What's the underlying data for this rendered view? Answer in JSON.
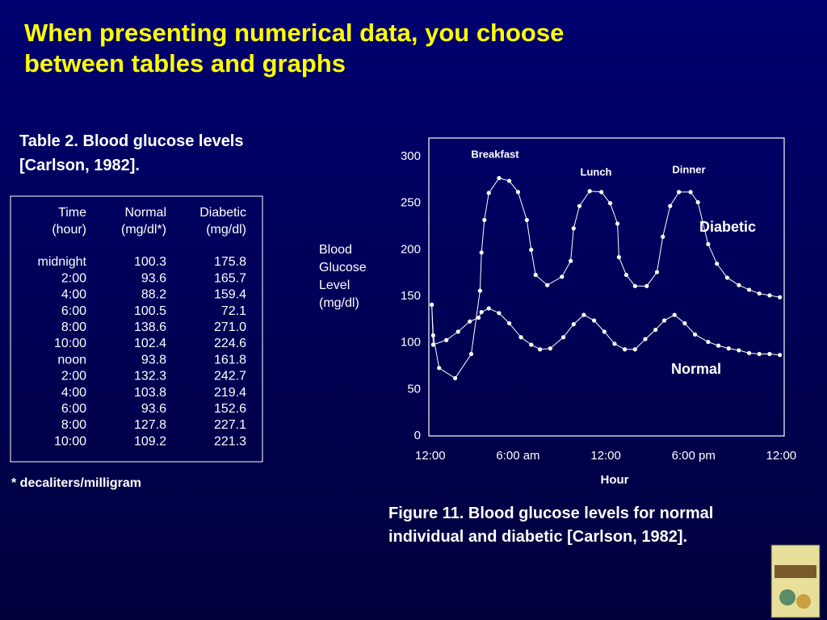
{
  "title": "When presenting numerical data, you choose between tables and graphs",
  "table_caption": "Table 2. Blood glucose levels [Carlson, 1982].",
  "table": {
    "header": [
      [
        "Time",
        "(hour)"
      ],
      [
        "Normal",
        "(mg/dl*)"
      ],
      [
        "Diabetic",
        "(mg/dl)"
      ]
    ],
    "rows": [
      [
        "midnight",
        "100.3",
        "175.8"
      ],
      [
        "2:00",
        "93.6",
        "165.7"
      ],
      [
        "4:00",
        "88.2",
        "159.4"
      ],
      [
        "6:00",
        "100.5",
        "72.1"
      ],
      [
        "8:00",
        "138.6",
        "271.0"
      ],
      [
        "10:00",
        "102.4",
        "224.6"
      ],
      [
        "noon",
        "93.8",
        "161.8"
      ],
      [
        "2:00",
        "132.3",
        "242.7"
      ],
      [
        "4:00",
        "103.8",
        "219.4"
      ],
      [
        "6:00",
        "93.6",
        "152.6"
      ],
      [
        "8:00",
        "127.8",
        "227.1"
      ],
      [
        "10:00",
        "109.2",
        "221.3"
      ]
    ]
  },
  "footnote": "* decaliters/milligram",
  "figure_caption": "Figure 11. Blood glucose levels for normal individual and diabetic [Carlson, 1982].",
  "chart_data": {
    "type": "line",
    "x_label": "Hour",
    "y_label": "Blood Glucose Level (mg/dl)",
    "xlim": [
      -0.1,
      24.2
    ],
    "ylim": [
      0,
      320
    ],
    "xticks": [
      {
        "value": 0,
        "label": "12:00"
      },
      {
        "value": 6,
        "label": "6:00 am"
      },
      {
        "value": 12,
        "label": "12:00"
      },
      {
        "value": 18,
        "label": "6:00 pm"
      },
      {
        "value": 24,
        "label": "12:00"
      }
    ],
    "yticks": [
      0,
      50,
      100,
      150,
      200,
      250,
      300
    ],
    "annotations": [
      "Breakfast",
      "Lunch",
      "Dinner"
    ],
    "series": [
      {
        "name": "Diabetic",
        "color": "#ffffff",
        "x": [
          0.1,
          0.2,
          0.6,
          1.7,
          2.8,
          3.4,
          3.5,
          3.7,
          4.0,
          4.7,
          5.4,
          6.0,
          6.6,
          6.9,
          7.2,
          8.0,
          9.0,
          9.6,
          9.8,
          10.2,
          10.9,
          11.7,
          12.3,
          12.8,
          12.9,
          13.4,
          14.0,
          14.8,
          15.5,
          15.9,
          16.4,
          17.0,
          17.8,
          18.3,
          19.0,
          19.6,
          20.3,
          21.1,
          21.8,
          22.5,
          23.2,
          23.9
        ],
        "values": [
          141,
          108,
          73,
          62,
          88,
          156,
          197,
          232,
          261,
          277,
          274,
          262,
          232,
          200,
          173,
          162,
          171,
          188,
          223,
          247,
          263,
          262,
          250,
          228,
          192,
          173,
          161,
          161,
          176,
          214,
          247,
          262,
          262,
          251,
          206,
          185,
          170,
          162,
          157,
          153,
          151,
          149
        ]
      },
      {
        "name": "Normal",
        "color": "#ffffff",
        "x": [
          0.1,
          0.2,
          1.1,
          1.9,
          2.7,
          3.3,
          3.5,
          4.0,
          4.7,
          5.4,
          6.2,
          6.9,
          7.5,
          8.2,
          9.1,
          9.8,
          10.5,
          11.2,
          11.9,
          12.6,
          13.3,
          14.0,
          14.7,
          15.4,
          16.0,
          16.7,
          17.4,
          18.1,
          19.0,
          19.7,
          20.4,
          21.1,
          21.8,
          22.5,
          23.2,
          23.9
        ],
        "values": [
          141,
          98,
          103,
          112,
          123,
          127,
          133,
          137,
          132,
          121,
          106,
          98,
          93,
          94,
          106,
          120,
          130,
          124,
          112,
          99,
          93,
          93,
          104,
          114,
          124,
          130,
          121,
          109,
          101,
          97,
          94,
          92,
          89,
          88,
          88,
          87
        ]
      }
    ]
  }
}
